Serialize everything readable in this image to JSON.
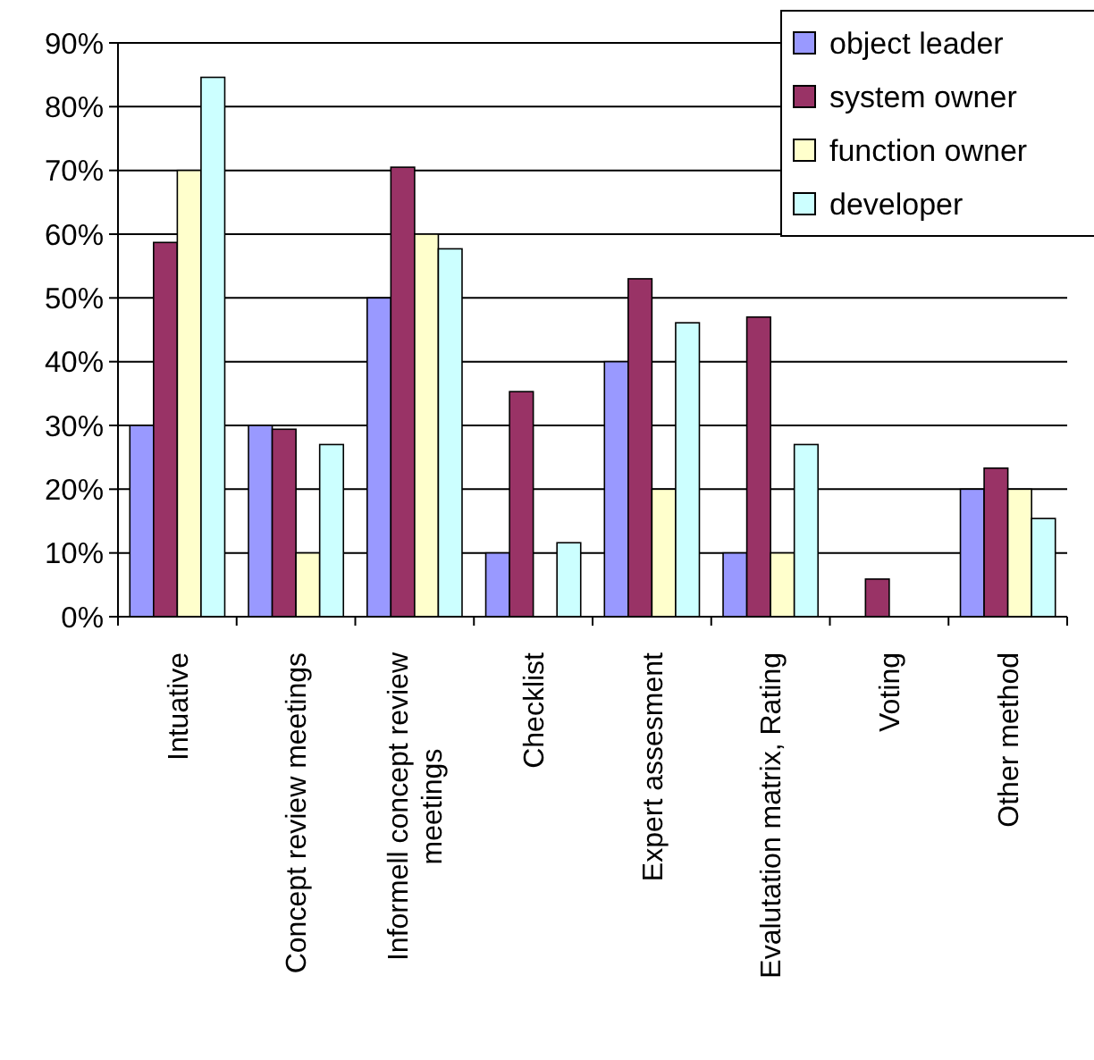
{
  "chart_data": {
    "type": "bar",
    "categories": [
      "Intuative",
      "Concept review meetings",
      "Informell concept review meetings",
      "Checklist",
      "Expert assesment",
      "Evalutation matrix, Rating",
      "Voting",
      "Other method"
    ],
    "series": [
      {
        "name": "object leader",
        "color": "#9999ff",
        "values": [
          30,
          30,
          50,
          10,
          40,
          10,
          0,
          20
        ]
      },
      {
        "name": "system owner",
        "color": "#993366",
        "values": [
          58.7,
          29.4,
          70.5,
          35.3,
          53,
          47,
          5.9,
          23.3
        ]
      },
      {
        "name": "function owner",
        "color": "#ffffcc",
        "values": [
          70,
          10,
          60,
          0,
          20,
          10,
          0,
          20
        ]
      },
      {
        "name": "developer",
        "color": "#ccffff",
        "values": [
          84.6,
          27,
          57.7,
          11.6,
          46.1,
          27,
          0,
          15.4
        ]
      }
    ],
    "ylim": [
      0,
      90
    ],
    "yticks": [
      {
        "value": 0,
        "label": "0%"
      },
      {
        "value": 10,
        "label": "10%"
      },
      {
        "value": 20,
        "label": "20%"
      },
      {
        "value": 30,
        "label": "30%"
      },
      {
        "value": 40,
        "label": "40%"
      },
      {
        "value": 50,
        "label": "50%"
      },
      {
        "value": 60,
        "label": "60%"
      },
      {
        "value": 70,
        "label": "70%"
      },
      {
        "value": 80,
        "label": "80%"
      },
      {
        "value": 90,
        "label": "90%"
      }
    ],
    "grid": "y",
    "legend": "top right"
  }
}
